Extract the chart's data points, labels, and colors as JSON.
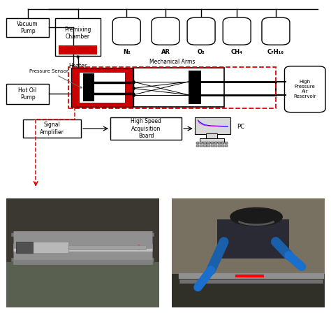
{
  "bg_color": "#ffffff",
  "red_color": "#cc0000",
  "dashed_red": "#dd0000",
  "gas_labels": [
    "N₂",
    "AR",
    "O₂",
    "CH₄",
    "C₇H₁₆"
  ],
  "photo_left_bg": "#5a6a5a",
  "photo_right_bg": "#6a7060",
  "schematic_ratio": 1.35,
  "photo_ratio": 1.0
}
